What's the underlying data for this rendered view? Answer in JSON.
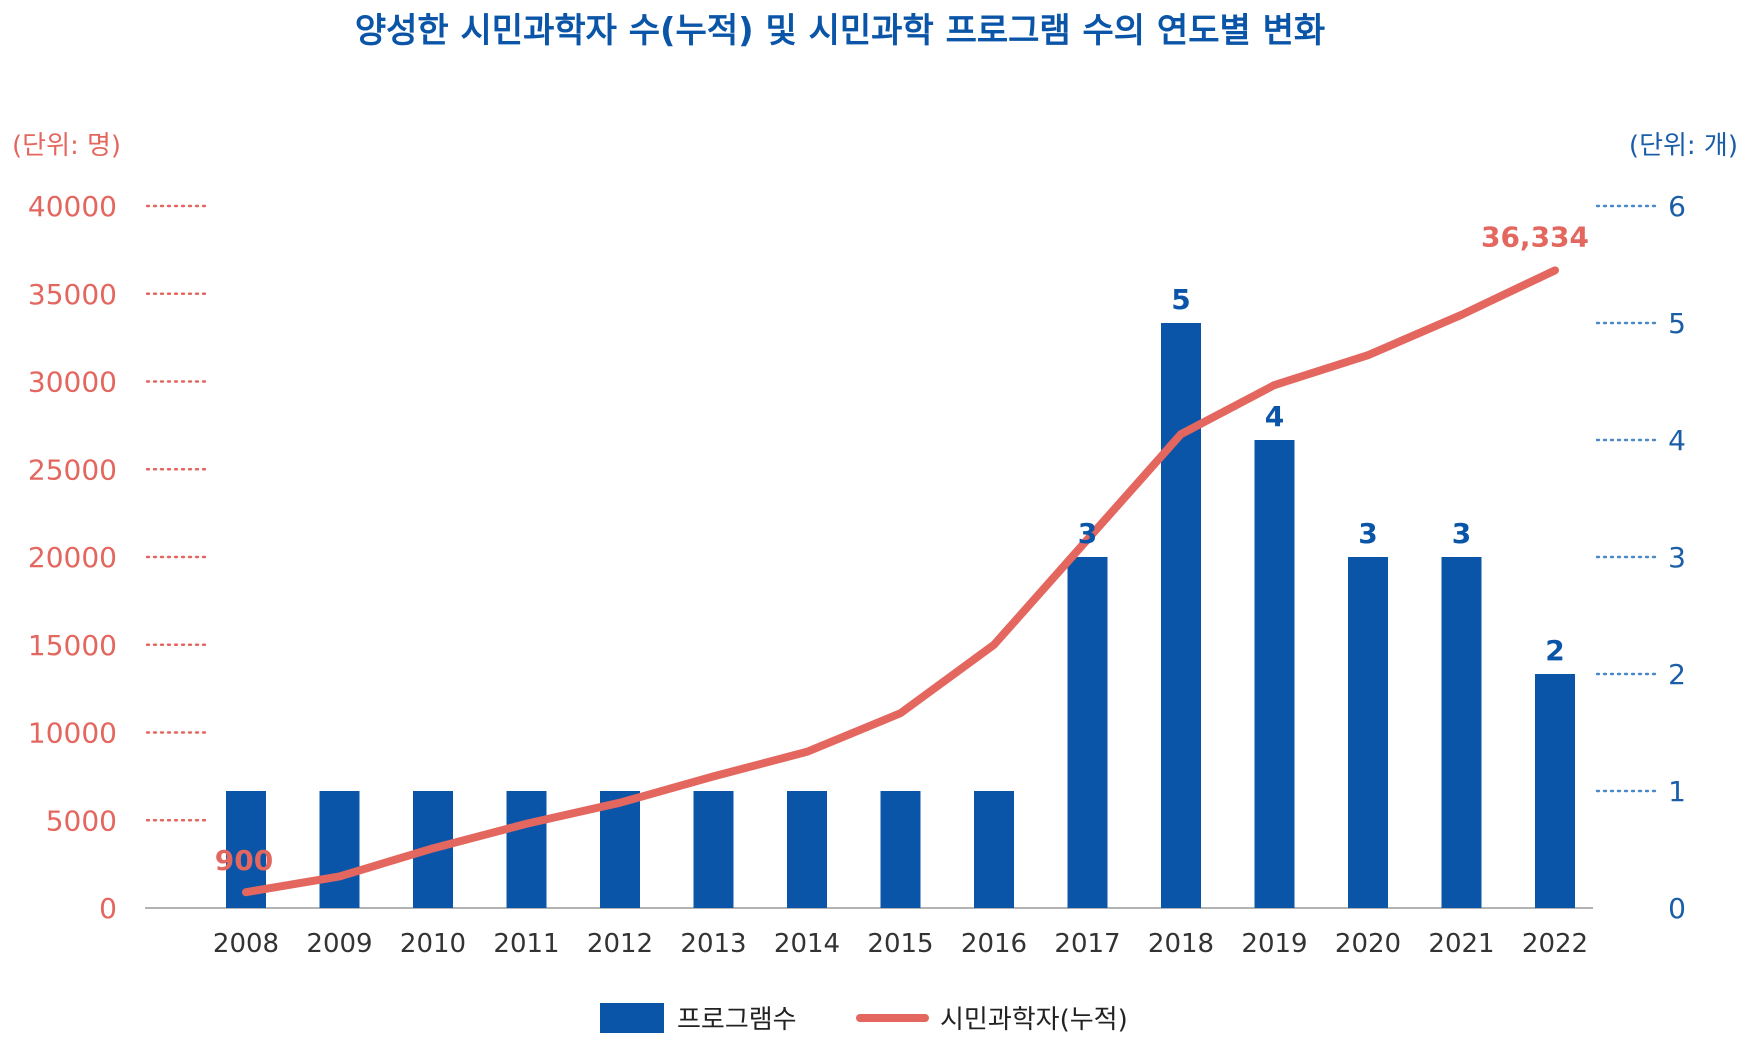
{
  "chart_data": {
    "type": "bar+line",
    "title": "양성한 시민과학자 수(누적) 및 시민과학 프로그램 수의 연도별 변화",
    "left_axis": {
      "unit": "(단위: 명)",
      "ticks": [
        "0",
        "5000",
        "10000",
        "15000",
        "20000",
        "25000",
        "30000",
        "35000",
        "40000"
      ],
      "range": [
        0,
        40000
      ]
    },
    "right_axis": {
      "unit": "(단위: 개)",
      "ticks": [
        "0",
        "1",
        "2",
        "3",
        "4",
        "5",
        "6"
      ],
      "range": [
        0,
        6
      ]
    },
    "categories": [
      "2008",
      "2009",
      "2010",
      "2011",
      "2012",
      "2013",
      "2014",
      "2015",
      "2016",
      "2017",
      "2018",
      "2019",
      "2020",
      "2021",
      "2022"
    ],
    "series": [
      {
        "name": "프로그램수",
        "kind": "bar",
        "axis": "right",
        "color": "#0b55a8",
        "values": [
          1,
          1,
          1,
          1,
          1,
          1,
          1,
          1,
          1,
          3,
          5,
          4,
          3,
          3,
          2
        ],
        "data_labels": {
          "2017": "3",
          "2018": "5",
          "2019": "4",
          "2020": "3",
          "2021": "3",
          "2022": "2"
        }
      },
      {
        "name": "시민과학자(누적)",
        "kind": "line",
        "axis": "left",
        "color": "#e4675f",
        "values": [
          900,
          1800,
          3400,
          4800,
          6000,
          7500,
          8900,
          11100,
          15000,
          21000,
          27000,
          29800,
          31500,
          33800,
          36334
        ],
        "data_labels": {
          "2008": "900",
          "2022": "36,334"
        }
      }
    ],
    "grid": false,
    "legend_position": "bottom-center"
  }
}
